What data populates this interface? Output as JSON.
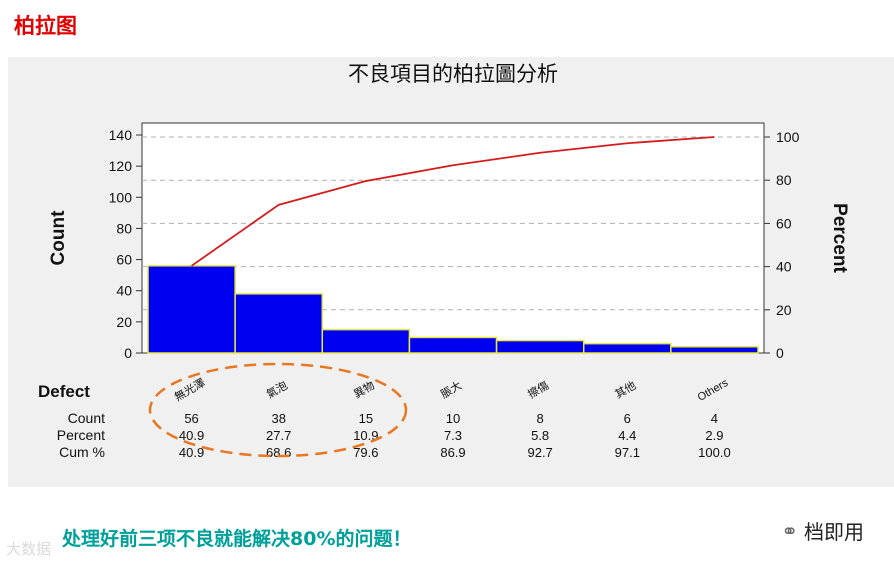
{
  "page": {
    "heading": "柏拉图",
    "caption": "处理好前三项不良就能解决80%的问题！",
    "brand": "档即用",
    "watermark": "大数据"
  },
  "colors": {
    "heading": "#e00000",
    "bar_fill": "#0000f0",
    "bar_stroke": "#e8e840",
    "cumulative_line": "#d41c1c",
    "highlight_ellipse": "#e87722",
    "caption": "#00a09a",
    "panel": "#f0f0f0"
  },
  "icons": {
    "brand": "wechat-icon"
  },
  "chart_data": {
    "type": "bar",
    "title": "不良項目的柏拉圖分析",
    "xlabel": "Defect",
    "ylabel": "Count",
    "y2label": "Percent",
    "categories": [
      "無光澤",
      "氣泡",
      "異物",
      "脹大",
      "擦傷",
      "其他",
      "Others"
    ],
    "series": [
      {
        "name": "Count",
        "type": "bar",
        "values": [
          56,
          38,
          15,
          10,
          8,
          6,
          4
        ]
      },
      {
        "name": "Cum %",
        "type": "line",
        "axis": "y2",
        "values": [
          40.9,
          68.6,
          79.6,
          86.9,
          92.7,
          97.1,
          100.0
        ]
      }
    ],
    "ylim": [
      0,
      140
    ],
    "yticks": [
      0,
      20,
      40,
      60,
      80,
      100,
      120,
      140
    ],
    "y2lim": [
      0,
      100
    ],
    "y2ticks": [
      0,
      20,
      40,
      60,
      80,
      100
    ],
    "grid": "dashed at right-axis ticks",
    "table": {
      "row_labels": [
        "Count",
        "Percent",
        "Cum %"
      ],
      "rows": [
        [
          "56",
          "38",
          "15",
          "10",
          "8",
          "6",
          "4"
        ],
        [
          "40.9",
          "27.7",
          "10.9",
          "7.3",
          "5.8",
          "4.4",
          "2.9"
        ],
        [
          "40.9",
          "68.6",
          "79.6",
          "86.9",
          "92.7",
          "97.1",
          "100.0"
        ]
      ]
    },
    "annotation": "dashed ellipse around first three categories"
  }
}
